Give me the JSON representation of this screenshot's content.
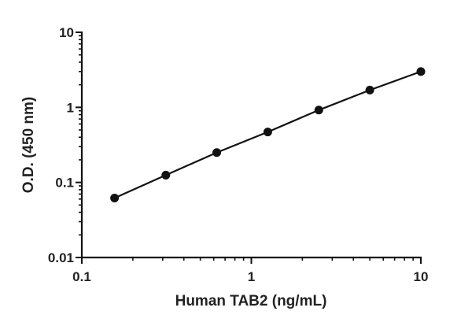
{
  "chart_data": {
    "type": "line",
    "xlabel": "Human TAB2 (ng/mL)",
    "ylabel": "O.D. (450 nm)",
    "x_scale": "log",
    "y_scale": "log",
    "xlim": [
      0.1,
      10
    ],
    "ylim": [
      0.01,
      10
    ],
    "x_ticks": [
      0.1,
      1,
      10
    ],
    "x_tick_labels": [
      "0.1",
      "1",
      "10"
    ],
    "y_ticks": [
      0.01,
      0.1,
      1,
      10
    ],
    "y_tick_labels": [
      "0.01",
      "0.1",
      "1",
      "10"
    ],
    "grid": false,
    "legend": "none",
    "series": [
      {
        "x": [
          0.156,
          0.313,
          0.625,
          1.25,
          2.5,
          5,
          10
        ],
        "y": [
          0.062,
          0.125,
          0.25,
          0.47,
          0.92,
          1.7,
          3.0
        ]
      }
    ],
    "colors": {
      "marker": "#111111",
      "line": "#111111",
      "axis": "#111111"
    }
  }
}
